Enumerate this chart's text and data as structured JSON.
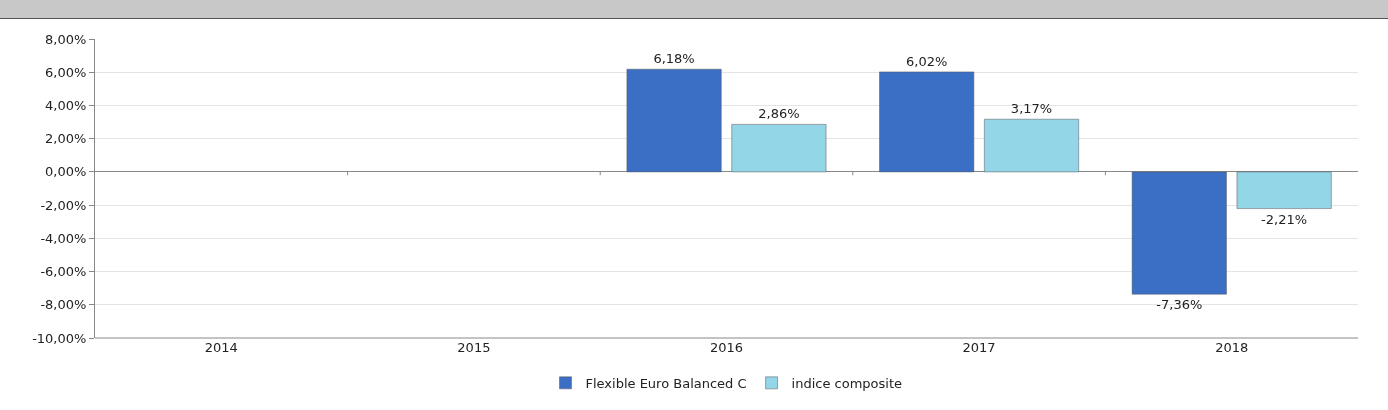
{
  "chart_data": {
    "type": "bar",
    "categories": [
      "2014",
      "2015",
      "2016",
      "2017",
      "2018"
    ],
    "series": [
      {
        "name": "Flexible Euro Balanced C",
        "color": "#3b6fc6",
        "values": [
          null,
          null,
          6.18,
          6.02,
          -7.36
        ],
        "value_labels": [
          null,
          null,
          "6,18%",
          "6,02%",
          "-7,36%"
        ]
      },
      {
        "name": "indice composite",
        "color": "#93d6e8",
        "values": [
          null,
          null,
          2.86,
          3.17,
          -2.21
        ],
        "value_labels": [
          null,
          null,
          "2,86%",
          "3,17%",
          "-2,21%"
        ]
      }
    ],
    "ylim": [
      -10,
      8
    ],
    "yticks": [
      {
        "value": -10,
        "label": "-10,00%"
      },
      {
        "value": -8,
        "label": "-8,00%"
      },
      {
        "value": -6,
        "label": "-6,00%"
      },
      {
        "value": -4,
        "label": "-4,00%"
      },
      {
        "value": -2,
        "label": "-2,00%"
      },
      {
        "value": 0,
        "label": "0,00%"
      },
      {
        "value": 2,
        "label": "2,00%"
      },
      {
        "value": 4,
        "label": "4,00%"
      },
      {
        "value": 6,
        "label": "6,00%"
      },
      {
        "value": 8,
        "label": "8,00%"
      }
    ],
    "grid": "y",
    "legend": "bottom"
  }
}
